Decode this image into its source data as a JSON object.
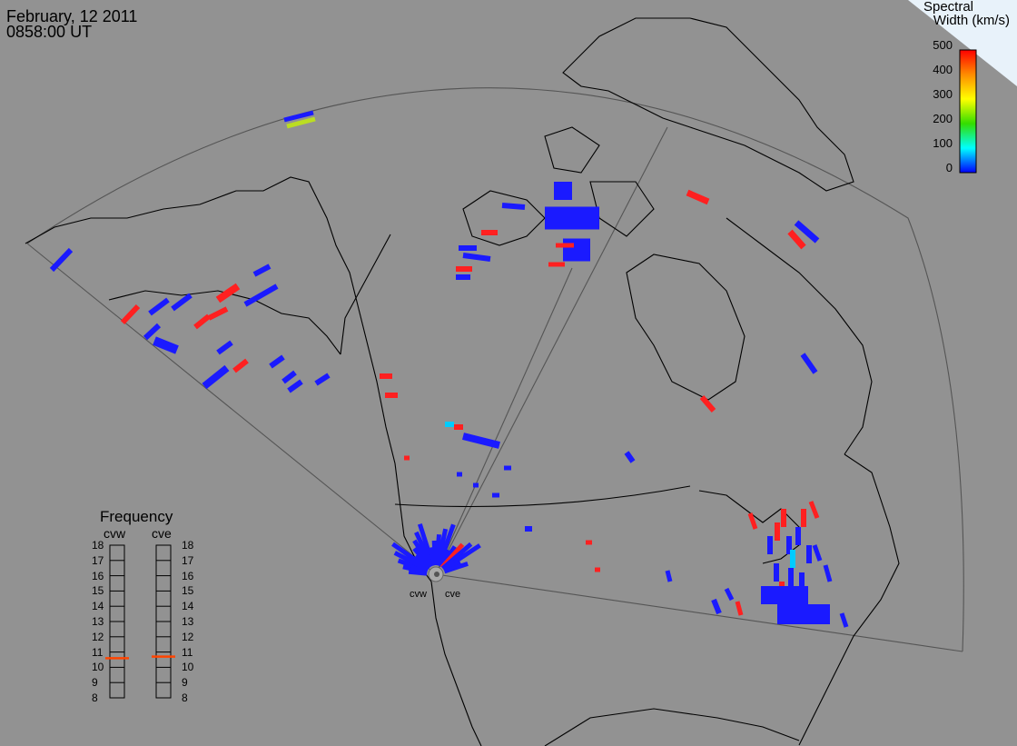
{
  "header": {
    "date": "February, 12 2011",
    "time": "0858:00 UT"
  },
  "colorbar": {
    "title_line1": "Spectral",
    "title_line2": "Width (km/s)",
    "ticks": [
      "500",
      "400",
      "300",
      "200",
      "100",
      "0"
    ],
    "colors": [
      "#ff0000",
      "#ff8c00",
      "#ffff00",
      "#33dd00",
      "#00ffff",
      "#0000ff"
    ]
  },
  "frequency": {
    "title": "Frequency",
    "radars": [
      "cvw",
      "cve"
    ],
    "ticks": [
      "18",
      "17",
      "16",
      "15",
      "14",
      "13",
      "12",
      "11",
      "10",
      "9",
      "8"
    ],
    "cvw_value_mhz": 10.6,
    "cve_value_mhz": 10.7,
    "indicator_color": "#ff4400"
  },
  "sites": {
    "west": "cvw",
    "east": "cve"
  },
  "map": {
    "projection": "polar",
    "land_outline_color": "#000000",
    "fov_outline_color": "#444444",
    "corner_color": "#ddeeff"
  },
  "legend_colors": {
    "low_width": "#1a1aff",
    "high_width": "#ff2020",
    "mid_width": "#00ccff"
  }
}
